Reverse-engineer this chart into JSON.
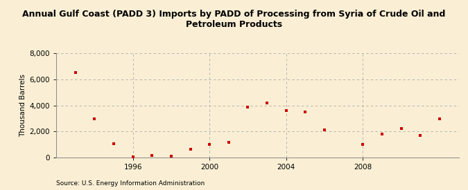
{
  "title": "Annual Gulf Coast (PADD 3) Imports by PADD of Processing from Syria of Crude Oil and\nPetroleum Products",
  "ylabel": "Thousand Barrels",
  "source": "Source: U.S. Energy Information Administration",
  "background_color": "#faefd4",
  "plot_bg_color": "#faefd4",
  "marker_color": "#cc0000",
  "years": [
    1993,
    1994,
    1995,
    1996,
    1997,
    1998,
    1999,
    2000,
    2001,
    2002,
    2003,
    2004,
    2005,
    2006,
    2008,
    2009,
    2010,
    2011,
    2012
  ],
  "values": [
    6500,
    3000,
    1050,
    50,
    150,
    100,
    650,
    1000,
    1200,
    3900,
    4200,
    3600,
    3500,
    2150,
    1000,
    1800,
    2250,
    1700,
    2950
  ],
  "ylim": [
    0,
    8000
  ],
  "yticks": [
    0,
    2000,
    4000,
    6000,
    8000
  ],
  "xticks": [
    1996,
    2000,
    2004,
    2008
  ],
  "xlim": [
    1992.0,
    2013.0
  ],
  "grid_color": "#aaaaaa",
  "grid_style": "--",
  "title_fontsize": 9.0,
  "axis_fontsize": 7.5,
  "source_fontsize": 6.5
}
